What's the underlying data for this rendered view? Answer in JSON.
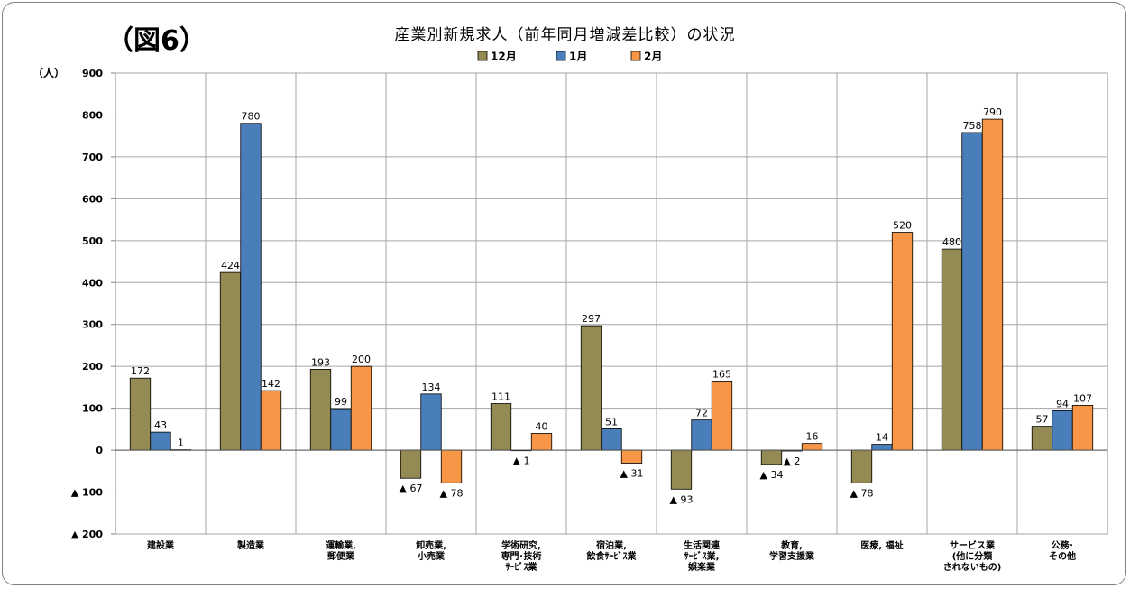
{
  "figure_label": "（図6）",
  "title": "産業別新規求人（前年同月増減差比較）の状況",
  "colors": {
    "dec": "#948a54",
    "jan": "#4a7ebb",
    "feb": "#f79646",
    "grid": "#a6a6a6",
    "axis": "#808080"
  },
  "chart_data": {
    "type": "bar",
    "title": "産業別新規求人（前年同月増減差比較）の状況",
    "ylabel": "（人）",
    "xlabel": "",
    "ylim": [
      -200,
      900
    ],
    "yticks": [
      {
        "v": 900,
        "label": "900"
      },
      {
        "v": 800,
        "label": "800"
      },
      {
        "v": 700,
        "label": "700"
      },
      {
        "v": 600,
        "label": "600"
      },
      {
        "v": 500,
        "label": "500"
      },
      {
        "v": 400,
        "label": "400"
      },
      {
        "v": 300,
        "label": "300"
      },
      {
        "v": 200,
        "label": "200"
      },
      {
        "v": 100,
        "label": "100"
      },
      {
        "v": 0,
        "label": "0"
      },
      {
        "v": -100,
        "label": "▲ 100"
      },
      {
        "v": -200,
        "label": "▲ 200"
      }
    ],
    "grid": true,
    "legend_position": "top-center",
    "categories": [
      [
        "建設業"
      ],
      [
        "製造業"
      ],
      [
        "運輸業,",
        "郵便業"
      ],
      [
        "卸売業,",
        "小売業"
      ],
      [
        "学術研究,",
        "専門･技術",
        "ｻｰﾋﾞｽ業"
      ],
      [
        "宿泊業,",
        "飲食ｻｰﾋﾞｽ業"
      ],
      [
        "生活関連",
        "ｻｰﾋﾞｽ業,",
        "娯楽業"
      ],
      [
        "教育,",
        "学習支援業"
      ],
      [
        "医療, 福祉"
      ],
      [
        "サービス業",
        "(他に分類",
        "されないもの)"
      ],
      [
        "公務･",
        "その他"
      ]
    ],
    "series": [
      {
        "name": "12月",
        "values": [
          172,
          424,
          193,
          -67,
          111,
          297,
          -93,
          -34,
          -78,
          480,
          57
        ],
        "labels": [
          "172",
          "424",
          "193",
          "▲ 67",
          "111",
          "297",
          "▲ 93",
          "▲ 34",
          "▲ 78",
          "480",
          "57"
        ]
      },
      {
        "name": "1月",
        "values": [
          43,
          780,
          99,
          134,
          -1,
          51,
          72,
          -2,
          14,
          758,
          94
        ],
        "labels": [
          "43",
          "780",
          "99",
          "134",
          "▲ 1",
          "51",
          "72",
          "▲ 2",
          "14",
          "758",
          "94"
        ]
      },
      {
        "name": "2月",
        "values": [
          1,
          142,
          200,
          -78,
          40,
          -31,
          165,
          16,
          520,
          790,
          107
        ],
        "labels": [
          "1",
          "142",
          "200",
          "▲ 78",
          "40",
          "▲ 31",
          "165",
          "16",
          "520",
          "790",
          "107"
        ]
      }
    ]
  }
}
